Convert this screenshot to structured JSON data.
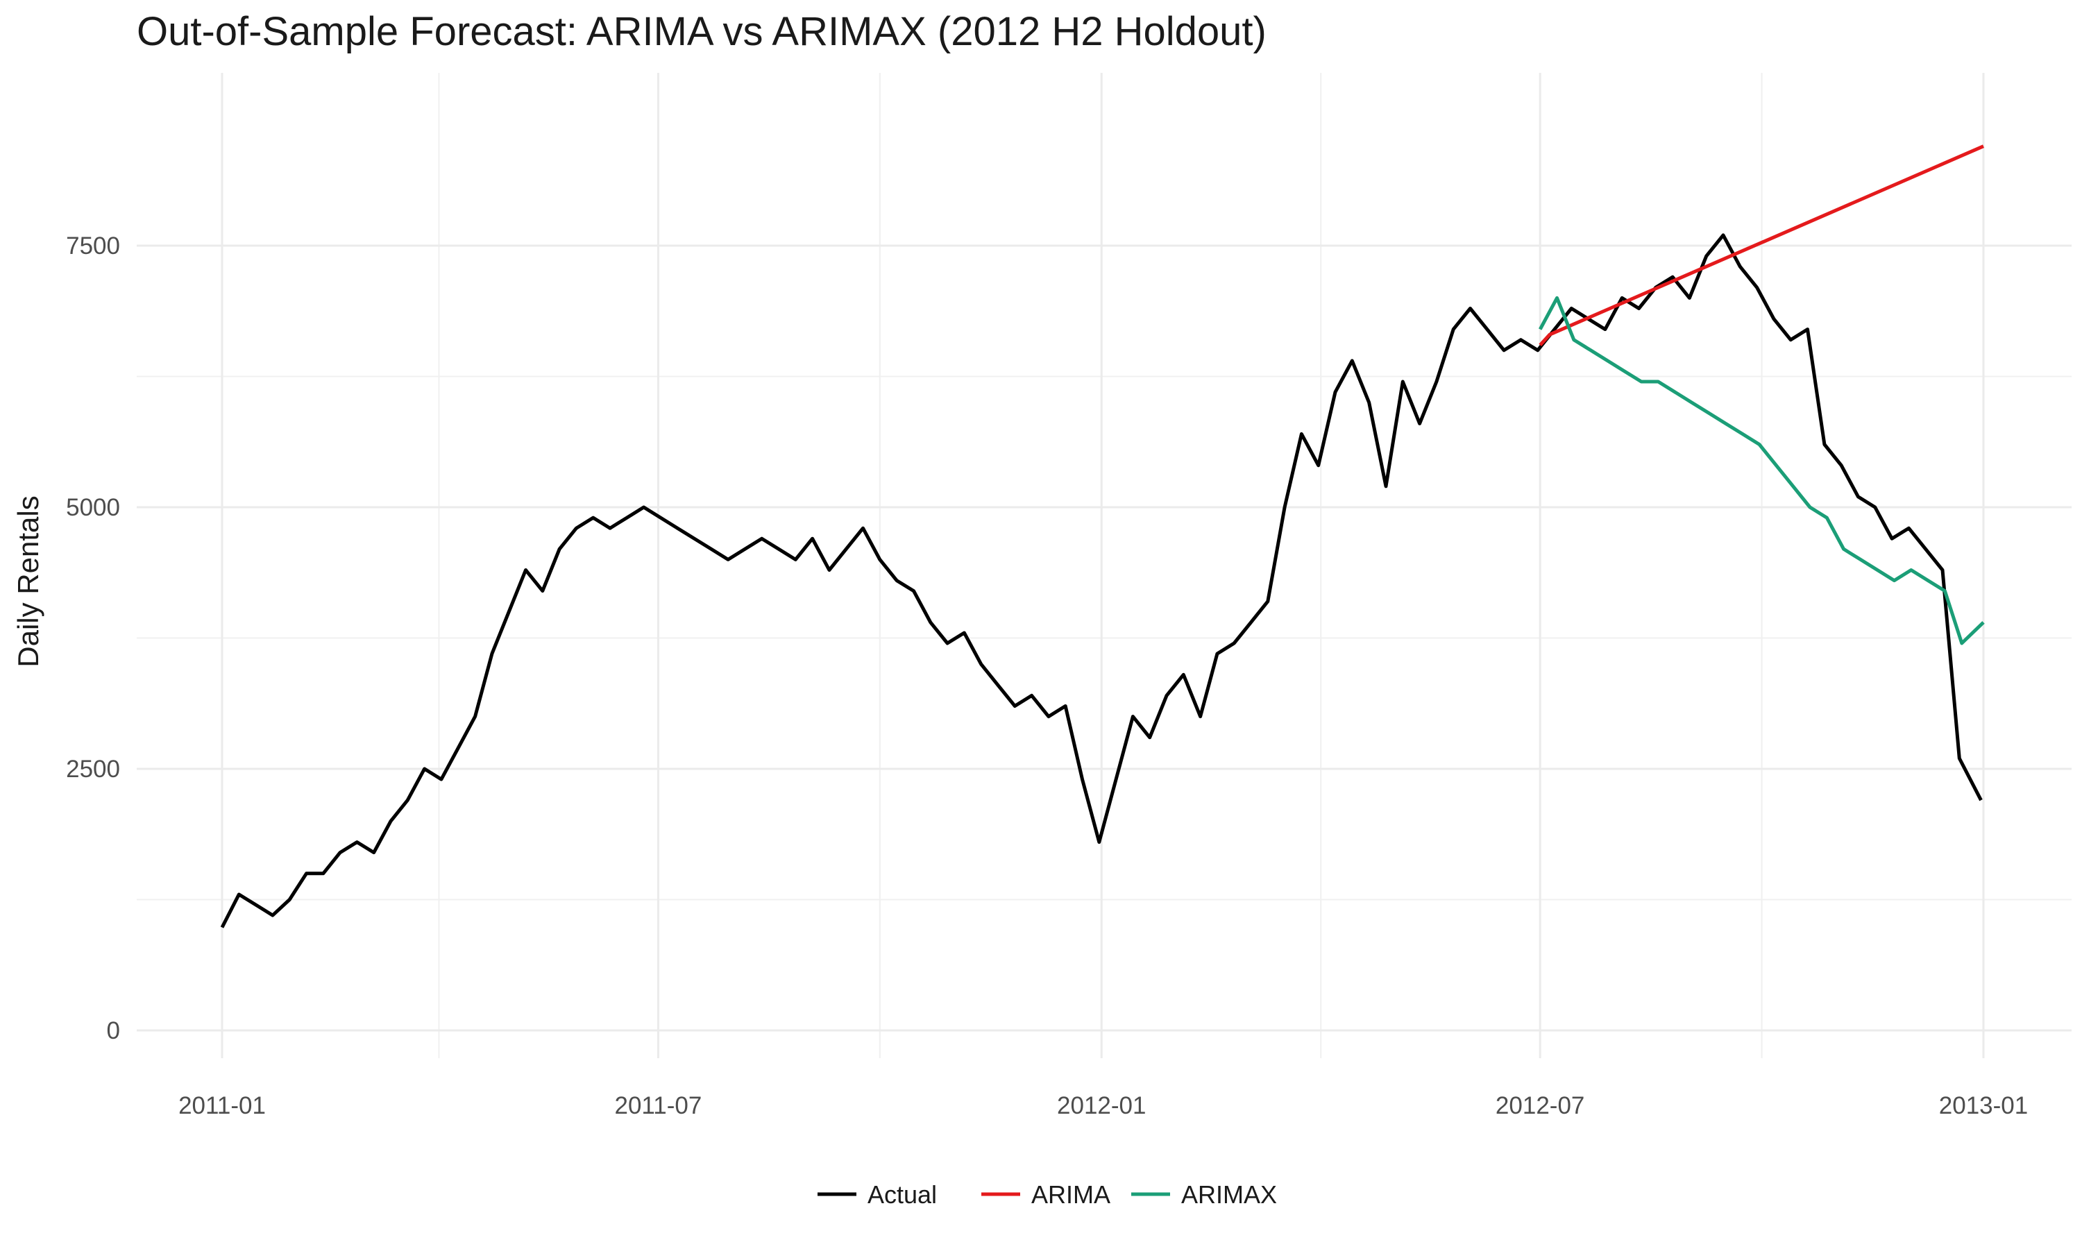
{
  "chart_data": {
    "type": "line",
    "title": "Out-of-Sample Forecast: ARIMA vs ARIMAX (2012 H2 Holdout)",
    "xlabel": "",
    "ylabel": "Daily Rentals",
    "xlim": [
      "2011-01-01",
      "2013-01-01"
    ],
    "ylim": [
      0,
      8700
    ],
    "x_ticks": [
      "2011-01",
      "2011-07",
      "2012-01",
      "2012-07",
      "2013-01"
    ],
    "y_ticks": [
      0,
      2500,
      5000,
      7500
    ],
    "grid": true,
    "legend_position": "bottom",
    "series": [
      {
        "name": "Actual",
        "color": "#000000",
        "points": [
          [
            "2011-01-01",
            985
          ],
          [
            "2011-01-08",
            1300
          ],
          [
            "2011-01-15",
            1200
          ],
          [
            "2011-01-22",
            1100
          ],
          [
            "2011-01-29",
            1250
          ],
          [
            "2011-02-05",
            1500
          ],
          [
            "2011-02-12",
            1500
          ],
          [
            "2011-02-19",
            1700
          ],
          [
            "2011-02-26",
            1800
          ],
          [
            "2011-03-05",
            1700
          ],
          [
            "2011-03-12",
            2000
          ],
          [
            "2011-03-19",
            2200
          ],
          [
            "2011-03-26",
            2500
          ],
          [
            "2011-04-02",
            2400
          ],
          [
            "2011-04-09",
            2700
          ],
          [
            "2011-04-16",
            3000
          ],
          [
            "2011-04-23",
            3600
          ],
          [
            "2011-04-30",
            4000
          ],
          [
            "2011-05-07",
            4400
          ],
          [
            "2011-05-14",
            4200
          ],
          [
            "2011-05-21",
            4600
          ],
          [
            "2011-05-28",
            4800
          ],
          [
            "2011-06-04",
            4900
          ],
          [
            "2011-06-11",
            4800
          ],
          [
            "2011-06-18",
            4900
          ],
          [
            "2011-06-25",
            5000
          ],
          [
            "2011-07-02",
            4900
          ],
          [
            "2011-07-09",
            4800
          ],
          [
            "2011-07-16",
            4700
          ],
          [
            "2011-07-23",
            4600
          ],
          [
            "2011-07-30",
            4500
          ],
          [
            "2011-08-06",
            4600
          ],
          [
            "2011-08-13",
            4700
          ],
          [
            "2011-08-20",
            4600
          ],
          [
            "2011-08-27",
            4500
          ],
          [
            "2011-09-03",
            4700
          ],
          [
            "2011-09-10",
            4400
          ],
          [
            "2011-09-17",
            4600
          ],
          [
            "2011-09-24",
            4800
          ],
          [
            "2011-10-01",
            4500
          ],
          [
            "2011-10-08",
            4300
          ],
          [
            "2011-10-15",
            4200
          ],
          [
            "2011-10-22",
            3900
          ],
          [
            "2011-10-29",
            3700
          ],
          [
            "2011-11-05",
            3800
          ],
          [
            "2011-11-12",
            3500
          ],
          [
            "2011-11-19",
            3300
          ],
          [
            "2011-11-26",
            3100
          ],
          [
            "2011-12-03",
            3200
          ],
          [
            "2011-12-10",
            3000
          ],
          [
            "2011-12-17",
            3100
          ],
          [
            "2011-12-24",
            2400
          ],
          [
            "2011-12-31",
            1800
          ],
          [
            "2012-01-07",
            2400
          ],
          [
            "2012-01-14",
            3000
          ],
          [
            "2012-01-21",
            2800
          ],
          [
            "2012-01-28",
            3200
          ],
          [
            "2012-02-04",
            3400
          ],
          [
            "2012-02-11",
            3000
          ],
          [
            "2012-02-18",
            3600
          ],
          [
            "2012-02-25",
            3700
          ],
          [
            "2012-03-03",
            3900
          ],
          [
            "2012-03-10",
            4100
          ],
          [
            "2012-03-17",
            5000
          ],
          [
            "2012-03-24",
            5700
          ],
          [
            "2012-03-31",
            5400
          ],
          [
            "2012-04-07",
            6100
          ],
          [
            "2012-04-14",
            6400
          ],
          [
            "2012-04-21",
            6000
          ],
          [
            "2012-04-28",
            5200
          ],
          [
            "2012-05-05",
            6200
          ],
          [
            "2012-05-12",
            5800
          ],
          [
            "2012-05-19",
            6200
          ],
          [
            "2012-05-26",
            6700
          ],
          [
            "2012-06-02",
            6900
          ],
          [
            "2012-06-09",
            6700
          ],
          [
            "2012-06-16",
            6500
          ],
          [
            "2012-06-23",
            6600
          ],
          [
            "2012-06-30",
            6500
          ],
          [
            "2012-07-07",
            6700
          ],
          [
            "2012-07-14",
            6900
          ],
          [
            "2012-07-21",
            6800
          ],
          [
            "2012-07-28",
            6700
          ],
          [
            "2012-08-04",
            7000
          ],
          [
            "2012-08-11",
            6900
          ],
          [
            "2012-08-18",
            7100
          ],
          [
            "2012-08-25",
            7200
          ],
          [
            "2012-09-01",
            7000
          ],
          [
            "2012-09-08",
            7400
          ],
          [
            "2012-09-15",
            7600
          ],
          [
            "2012-09-22",
            7300
          ],
          [
            "2012-09-29",
            7100
          ],
          [
            "2012-10-06",
            6800
          ],
          [
            "2012-10-13",
            6600
          ],
          [
            "2012-10-20",
            6700
          ],
          [
            "2012-10-27",
            5600
          ],
          [
            "2012-11-03",
            5400
          ],
          [
            "2012-11-10",
            5100
          ],
          [
            "2012-11-17",
            5000
          ],
          [
            "2012-11-24",
            4700
          ],
          [
            "2012-12-01",
            4800
          ],
          [
            "2012-12-08",
            4600
          ],
          [
            "2012-12-15",
            4400
          ],
          [
            "2012-12-22",
            2600
          ],
          [
            "2012-12-31",
            2200
          ]
        ]
      },
      {
        "name": "ARIMA",
        "color": "#e41a1c",
        "points": [
          [
            "2012-07-01",
            6550
          ],
          [
            "2012-07-05",
            6650
          ],
          [
            "2013-01-01",
            8450
          ]
        ]
      },
      {
        "name": "ARIMAX",
        "color": "#1b9e77",
        "points": [
          [
            "2012-07-01",
            6700
          ],
          [
            "2012-07-08",
            7000
          ],
          [
            "2012-07-15",
            6600
          ],
          [
            "2012-07-22",
            6500
          ],
          [
            "2012-07-29",
            6400
          ],
          [
            "2012-08-05",
            6300
          ],
          [
            "2012-08-12",
            6200
          ],
          [
            "2012-08-19",
            6200
          ],
          [
            "2012-08-26",
            6100
          ],
          [
            "2012-09-02",
            6000
          ],
          [
            "2012-09-09",
            5900
          ],
          [
            "2012-09-16",
            5800
          ],
          [
            "2012-09-23",
            5700
          ],
          [
            "2012-09-30",
            5600
          ],
          [
            "2012-10-07",
            5400
          ],
          [
            "2012-10-14",
            5200
          ],
          [
            "2012-10-21",
            5000
          ],
          [
            "2012-10-28",
            4900
          ],
          [
            "2012-11-04",
            4600
          ],
          [
            "2012-11-11",
            4500
          ],
          [
            "2012-11-18",
            4400
          ],
          [
            "2012-11-25",
            4300
          ],
          [
            "2012-12-02",
            4400
          ],
          [
            "2012-12-09",
            4300
          ],
          [
            "2012-12-16",
            4200
          ],
          [
            "2012-12-23",
            3700
          ],
          [
            "2013-01-01",
            3900
          ]
        ]
      }
    ]
  }
}
